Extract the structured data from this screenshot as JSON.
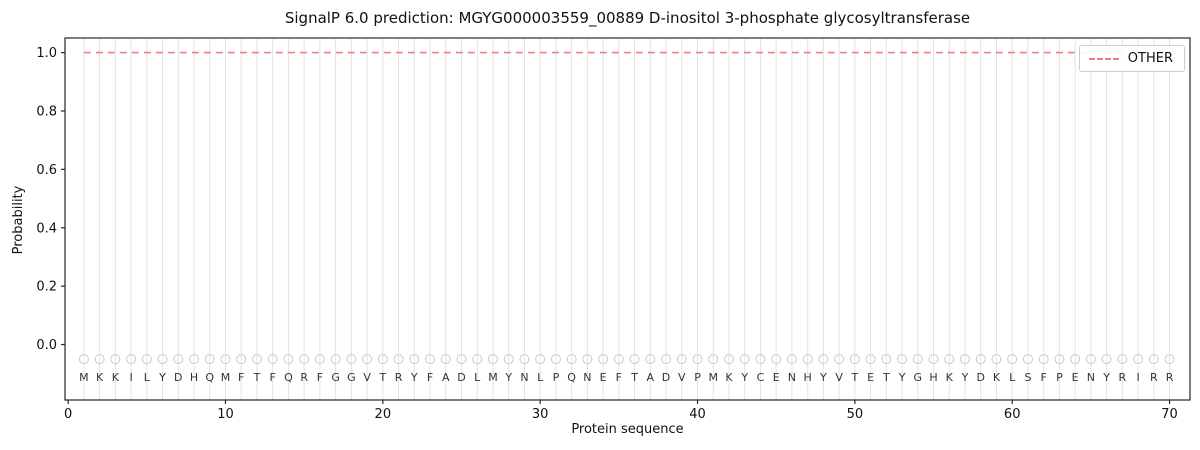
{
  "chart_data": {
    "type": "line",
    "title": "SignalP 6.0 prediction: MGYG000003559_00889 D-inositol 3-phosphate glycosyltransferase",
    "xlabel": "Protein sequence",
    "ylabel": "Probability",
    "xlim": [
      -0.2,
      71.3
    ],
    "ylim": [
      -0.19,
      1.05
    ],
    "xticks": [
      0,
      10,
      20,
      30,
      40,
      50,
      60,
      70
    ],
    "yticks": [
      0.0,
      0.2,
      0.4,
      0.6,
      0.8,
      1.0
    ],
    "grid": {
      "vertical_per_residue": true,
      "color": "#e3e3e3"
    },
    "sequence": "MKKILYDHQMFTFQRFGGVTRYFADLMYNLPQNEFTADVPMKYCENHYVTETYGHKYDKLSFPENYRIRR",
    "sequence_marker": {
      "shape": "circle",
      "y": -0.05,
      "color": "#c8c8c8",
      "radius_px": 4.5
    },
    "sequence_text_y": -0.11,
    "series": [
      {
        "name": "OTHER",
        "style": "dashed",
        "color": "#f08080",
        "x_start": 1,
        "x_end": 70,
        "y_constant": 1.0
      }
    ],
    "legend": {
      "position": "upper right",
      "entries": [
        {
          "label": "OTHER",
          "color": "#f08080",
          "style": "dashed"
        }
      ]
    }
  }
}
